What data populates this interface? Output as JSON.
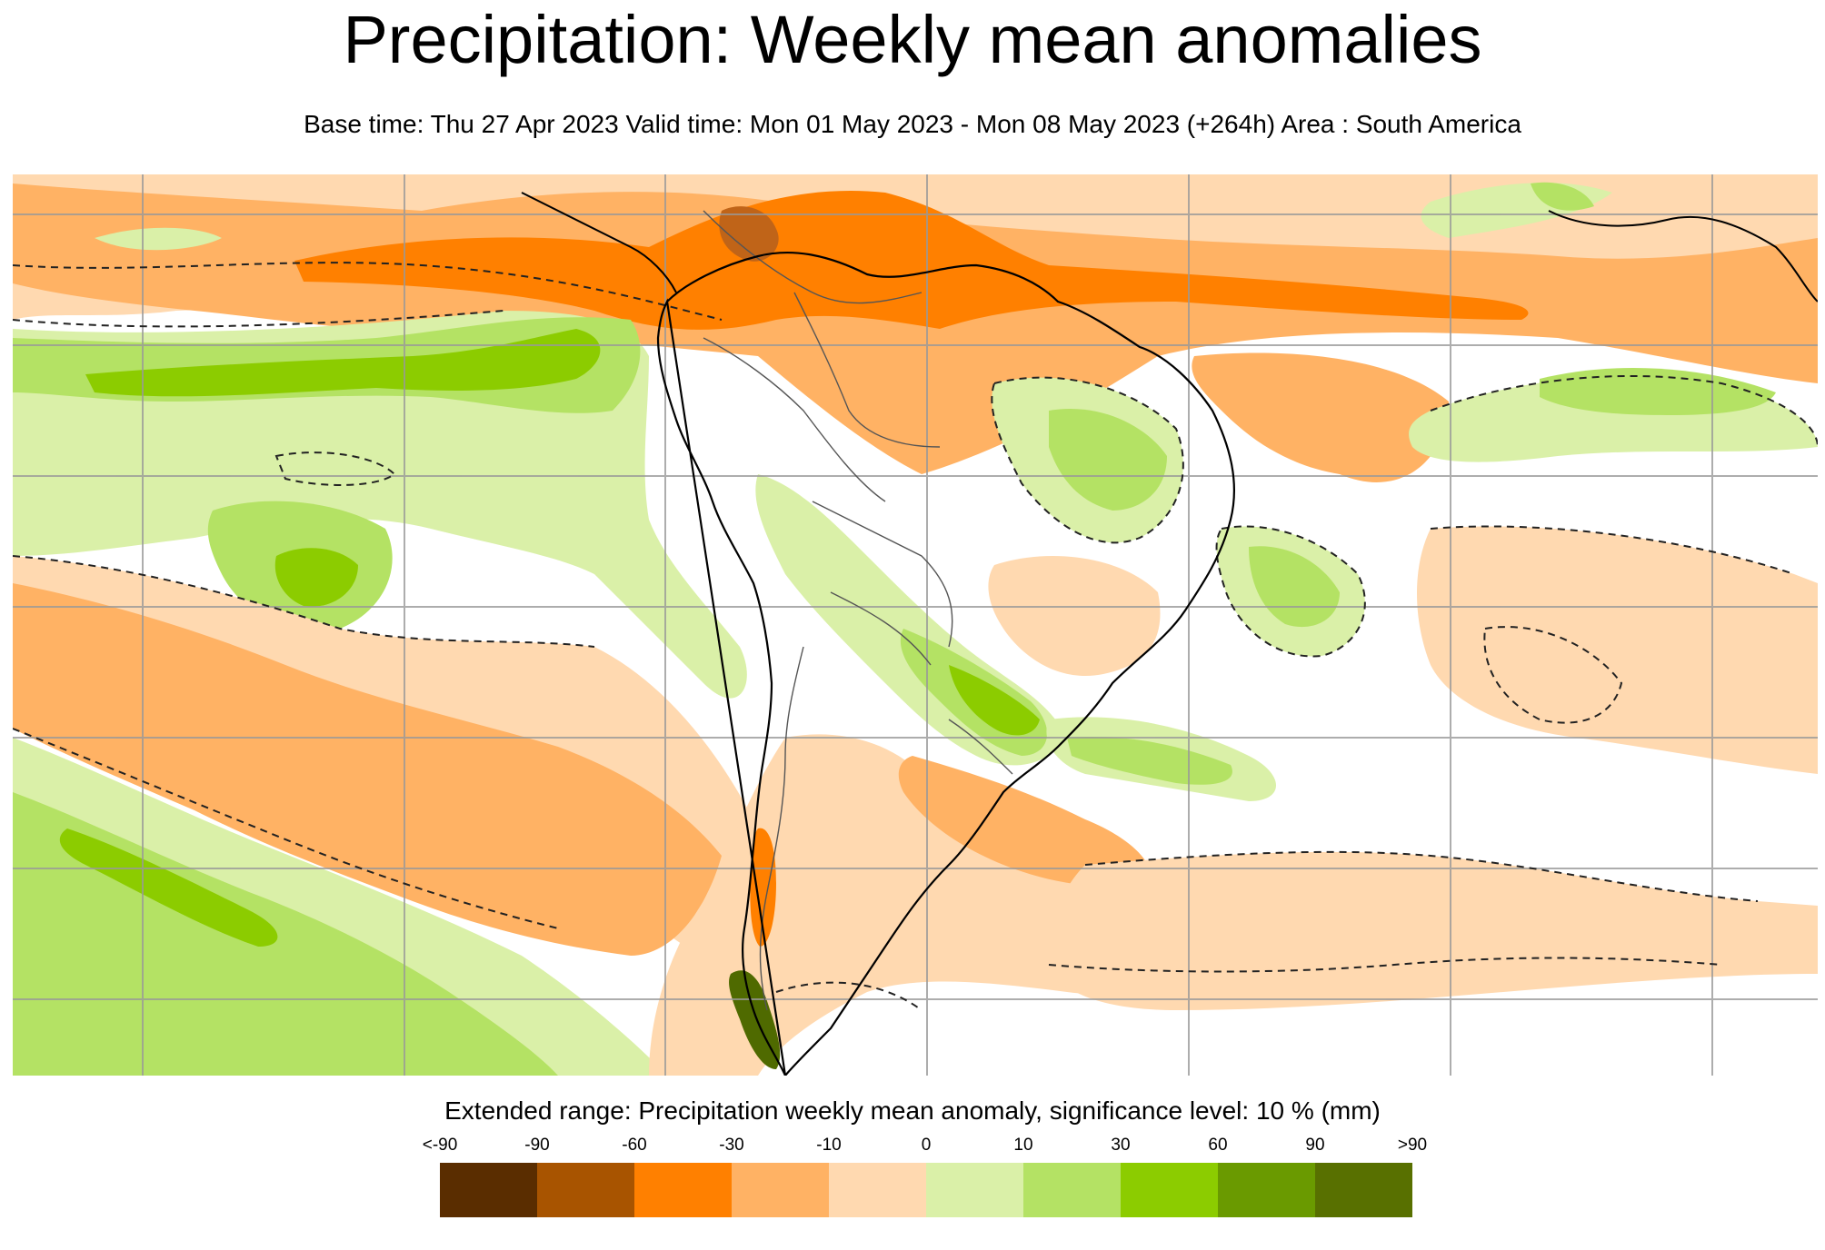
{
  "title": "Precipitation: Weekly mean anomalies",
  "subtitle": "Base time: Thu 27 Apr 2023 Valid time: Mon 01 May 2023 - Mon 08 May 2023 (+264h) Area : South America",
  "legend": {
    "title": "Extended range: Precipitation weekly mean anomaly, significance level: 10 % (mm)",
    "ticks": [
      "<-90",
      "-90",
      "-60",
      "-30",
      "-10",
      "0",
      "10",
      "30",
      "60",
      "90",
      ">90"
    ],
    "colors": [
      "#5a2d00",
      "#a85400",
      "#ff8000",
      "#ffb264",
      "#ffd9b0",
      "#daf0a8",
      "#b4e264",
      "#8ccc00",
      "#6a9a00",
      "#587000"
    ]
  },
  "map": {
    "area": "South America",
    "palette": {
      "dry_strong": "#ff8000",
      "dry_moderate": "#ffb264",
      "dry_weak": "#ffd9b0",
      "wet_weak": "#daf0a8",
      "wet_moderate": "#b4e264",
      "wet_strong": "#8ccc00",
      "very_dry": "#c06418",
      "very_wet": "#4f6a00",
      "coast": "#000000",
      "border": "#555555",
      "grid": "#999999",
      "contour": "#222222"
    }
  }
}
